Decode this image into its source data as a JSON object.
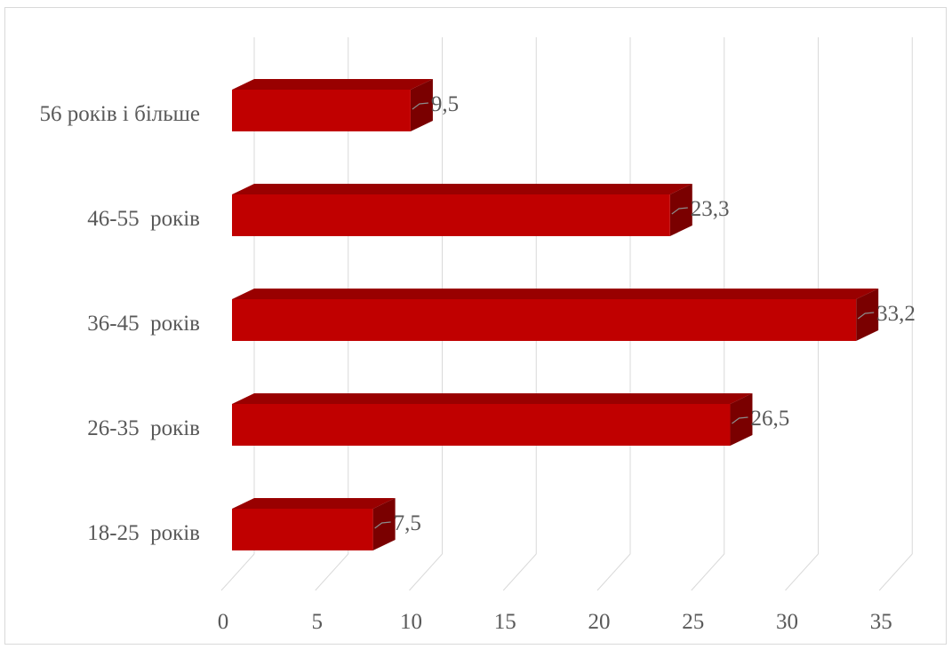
{
  "chart_data": {
    "type": "bar",
    "orientation": "horizontal",
    "style": "3d-clustered",
    "categories": [
      "56 років і більше",
      "46-55  років",
      "36-45  років",
      "26-35  років",
      "18-25  років"
    ],
    "values": [
      9.5,
      23.3,
      33.2,
      26.5,
      7.5
    ],
    "value_labels": [
      "9,5",
      "23,3",
      "33,2",
      "26,5",
      "7,5"
    ],
    "xlim": [
      0,
      35
    ],
    "x_ticks": [
      0,
      5,
      10,
      15,
      20,
      25,
      30,
      35
    ],
    "x_tick_labels": [
      "0",
      "5",
      "10",
      "15",
      "20",
      "25",
      "30",
      "35"
    ],
    "grid": true,
    "legend": "none",
    "colors": {
      "bar_front": "#c00000",
      "bar_top": "#990000",
      "bar_side": "#7a0000",
      "grid": "#d9d9d9",
      "text": "#595959"
    }
  }
}
